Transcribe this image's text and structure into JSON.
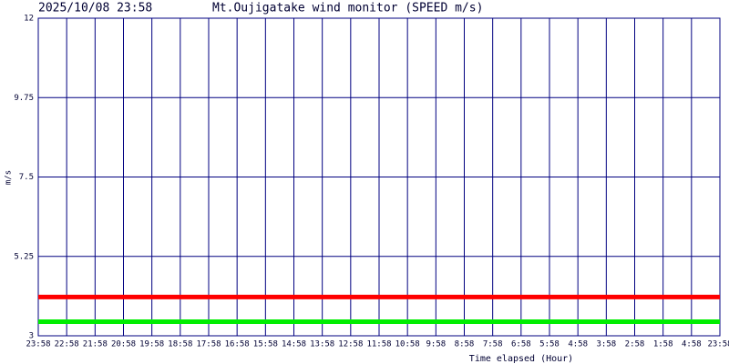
{
  "chart_data": {
    "type": "line",
    "timestamp": "2025/10/08 23:58",
    "title": "Mt.Oujigatake wind monitor (SPEED m/s)",
    "y_label": "m/s",
    "x_label": "Time elapsed (Hour)",
    "categories": [
      "23:58",
      "22:58",
      "21:58",
      "20:58",
      "19:58",
      "18:58",
      "17:58",
      "16:58",
      "15:58",
      "14:58",
      "13:58",
      "12:58",
      "11:58",
      "10:58",
      "9:58",
      "8:58",
      "7:58",
      "6:58",
      "5:58",
      "4:58",
      "3:58",
      "2:58",
      "1:58",
      "4:58",
      "23:58"
    ],
    "series": [
      {
        "color": "#ff0000",
        "values": [
          4.1,
          4.1,
          4.1,
          4.1,
          4.1,
          4.1,
          4.1,
          4.1,
          4.1,
          4.1,
          4.1,
          4.1,
          4.1,
          4.1,
          4.1,
          4.1,
          4.1,
          4.1,
          4.1,
          4.1,
          4.1,
          4.1,
          4.1,
          4.1,
          4.1
        ]
      },
      {
        "color": "#00ee00",
        "values": [
          3.4,
          3.4,
          3.4,
          3.4,
          3.4,
          3.4,
          3.4,
          3.4,
          3.4,
          3.4,
          3.4,
          3.4,
          3.4,
          3.4,
          3.4,
          3.4,
          3.4,
          3.4,
          3.4,
          3.4,
          3.4,
          3.4,
          3.4,
          3.4,
          3.4
        ]
      }
    ],
    "ylim": [
      3,
      12
    ],
    "yticks": [
      3,
      5.25,
      7.5,
      9.75,
      12
    ],
    "grid": true,
    "grid_color": "#000080"
  }
}
